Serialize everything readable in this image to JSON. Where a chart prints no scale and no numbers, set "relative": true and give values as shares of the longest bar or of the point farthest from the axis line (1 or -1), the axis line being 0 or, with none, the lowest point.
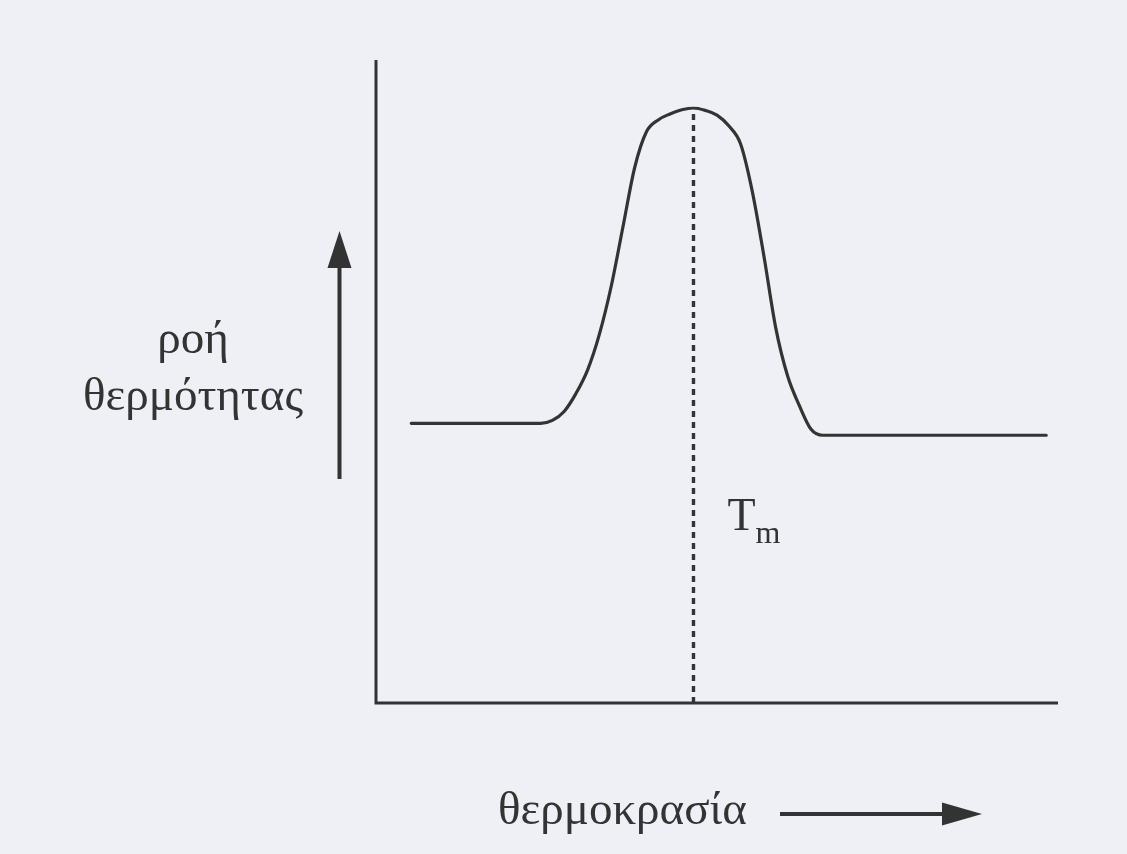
{
  "chart_data": {
    "type": "line",
    "relative": true,
    "xlabel": "θερμοκρασία",
    "ylabel": "ροή θερμότητας",
    "tick_labels": false,
    "marker": "none",
    "line_style": "solid",
    "categories": [
      null,
      null,
      null,
      null,
      null,
      null,
      null,
      null,
      null,
      null,
      null,
      null,
      null,
      null,
      null,
      null,
      null,
      null,
      null,
      null,
      null,
      null,
      null,
      null,
      null,
      null,
      null,
      null,
      null,
      null,
      null,
      null,
      null,
      null,
      null,
      null,
      null,
      null,
      null,
      null,
      null,
      null,
      null,
      null,
      null,
      null,
      null,
      null,
      null,
      null,
      null,
      null,
      null,
      null,
      null,
      null,
      null,
      null,
      null
    ],
    "series": [
      {
        "color": "#333333",
        "values": [
          null,
          null,
          null,
          0.47,
          0.47,
          0.47,
          0.47,
          0.47,
          0.47,
          0.47,
          0.47,
          0.47,
          0.47,
          0.47,
          0.47,
          0.475,
          0.49,
          0.52,
          0.56,
          0.62,
          0.7,
          0.8,
          0.9,
          0.96,
          0.98,
          0.99,
          0.997,
          1,
          0.996,
          0.988,
          0.97,
          0.94,
          0.86,
          0.75,
          0.63,
          0.55,
          0.5,
          0.46,
          0.45,
          0.45,
          0.45,
          0.45,
          0.45,
          0.45,
          0.45,
          0.45,
          0.45,
          0.45,
          0.45,
          0.45,
          0.45,
          0.45,
          0.45,
          0.45,
          0.45,
          0.45,
          0.45,
          0.45,
          null
        ]
      }
    ],
    "ref_lines": [
      {
        "axis": "x",
        "label": "T$_{m}$",
        "line_style": "dashed",
        "color": "#333333"
      }
    ]
  }
}
